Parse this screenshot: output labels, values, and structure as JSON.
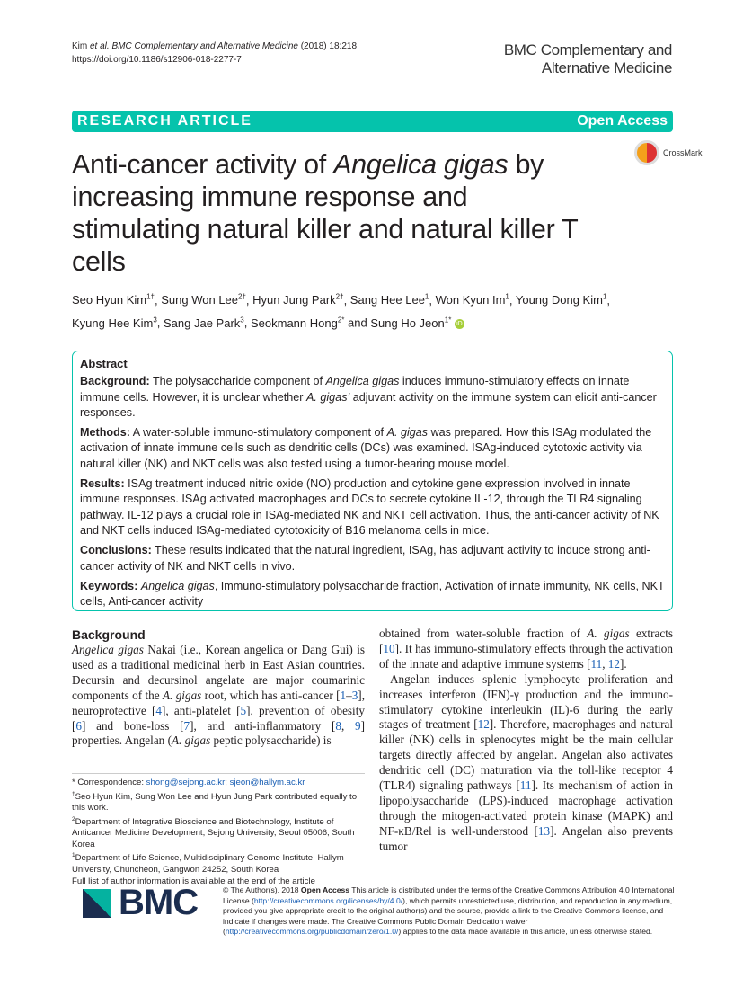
{
  "header": {
    "citation_authors": "Kim ",
    "citation_etal": "et al. BMC Complementary and Alternative Medicine",
    "citation_year": " (2018) 18:218",
    "doi": "https://doi.org/10.1186/s12906-018-2277-7",
    "journal_line1": "BMC Complementary and",
    "journal_line2": "Alternative Medicine"
  },
  "banner": {
    "left": "RESEARCH ARTICLE",
    "right": "Open Access",
    "color": "#05c3ac"
  },
  "crossmark": "CrossMark",
  "title": [
    [
      [
        "Anti-cancer activity of "
      ],
      [
        "Angelica gigas",
        "i"
      ],
      [
        " by"
      ]
    ],
    [
      [
        "increasing immune response and"
      ]
    ],
    [
      [
        "stimulating natural killer and natural killer T"
      ]
    ],
    [
      [
        "cells"
      ]
    ]
  ],
  "authors": [
    [
      "Seo Hyun Kim",
      "1†"
    ],
    [
      "Sung Won Lee",
      "2†"
    ],
    [
      "Hyun Jung Park",
      "2†"
    ],
    [
      "Sang Hee Lee",
      "1"
    ],
    [
      "Won Kyun Im",
      "1"
    ],
    [
      "Young Dong Kim",
      "1"
    ],
    [
      "Kyung Hee Kim",
      "3"
    ],
    [
      "Sang Jae Park",
      "3"
    ],
    [
      "Seokmann Hong",
      "2*"
    ],
    [
      "Sung Ho Jeon",
      "1*"
    ]
  ],
  "authors_and": "and",
  "abstract": {
    "heading": "Abstract",
    "sections": [
      [
        [
          "Background:",
          "b"
        ],
        [
          " The polysaccharide component of "
        ],
        [
          "Angelica gigas",
          "i"
        ],
        [
          " induces immuno-stimulatory effects on innate immune cells. However, it is unclear whether "
        ],
        [
          "A. gigas’",
          "i"
        ],
        [
          " adjuvant activity on the immune system can elicit anti-cancer responses."
        ]
      ],
      [
        [
          "Methods:",
          "b"
        ],
        [
          " A water-soluble immuno-stimulatory component of "
        ],
        [
          "A. gigas",
          "i"
        ],
        [
          " was prepared. How this ISAg modulated the activation of innate immune cells such as dendritic cells (DCs) was examined. ISAg-induced cytotoxic activity via natural killer (NK) and NKT cells was also tested using a tumor-bearing mouse model."
        ]
      ],
      [
        [
          "Results:",
          "b"
        ],
        [
          " ISAg treatment induced nitric oxide (NO) production and cytokine gene expression involved in innate immune responses. ISAg activated macrophages and DCs to secrete cytokine IL-12, through the TLR4 signaling pathway. IL-12 plays a crucial role in ISAg-mediated NK and NKT cell activation. Thus, the anti-cancer activity of NK and NKT cells induced ISAg-mediated cytotoxicity of B16 melanoma cells in mice."
        ]
      ],
      [
        [
          "Conclusions:",
          "b"
        ],
        [
          " These results indicated that the natural ingredient, ISAg, has adjuvant activity to induce strong anti-cancer activity of NK and NKT cells in vivo."
        ]
      ],
      [
        [
          "Keywords:",
          "b"
        ],
        [
          " "
        ],
        [
          "Angelica gigas",
          "i"
        ],
        [
          ", Immuno-stimulatory polysaccharide fraction, Activation of innate immunity, NK cells, NKT cells, Anti-cancer activity"
        ]
      ]
    ]
  },
  "body": {
    "heading": "Background",
    "left": [
      [
        [
          "Angelica gigas",
          "i"
        ],
        [
          " Nakai (i.e., Korean angelica or Dang Gui) is used as a traditional medicinal herb in East Asian countries. Decursin and decursinol angelate are major coumarinic components of the "
        ],
        [
          "A. gigas",
          "i"
        ],
        [
          " root, which has anti-cancer ["
        ],
        [
          "1",
          "c"
        ],
        [
          "–"
        ],
        [
          "3",
          "c"
        ],
        [
          "], neuroprotective ["
        ],
        [
          "4",
          "c"
        ],
        [
          "], anti-platelet ["
        ],
        [
          "5",
          "c"
        ],
        [
          "], prevention of obesity ["
        ],
        [
          "6",
          "c"
        ],
        [
          "] and bone-loss ["
        ],
        [
          "7",
          "c"
        ],
        [
          "], and anti-inflammatory ["
        ],
        [
          "8",
          "c"
        ],
        [
          ", "
        ],
        [
          "9",
          "c"
        ],
        [
          "] properties. Angelan ("
        ],
        [
          "A. gigas",
          "i"
        ],
        [
          " peptic polysaccharide) is"
        ]
      ]
    ],
    "right": [
      [
        [
          "obtained from water-soluble fraction of "
        ],
        [
          "A. gigas",
          "i"
        ],
        [
          " extracts ["
        ],
        [
          "10",
          "c"
        ],
        [
          "]. It has immuno-stimulatory effects through the activation of the innate and adaptive immune systems ["
        ],
        [
          "11",
          "c"
        ],
        [
          ", "
        ],
        [
          "12",
          "c"
        ],
        [
          "]."
        ]
      ],
      [
        [
          "Angelan induces splenic lymphocyte proliferation and increases interferon (IFN)-γ production and the immuno-stimulatory cytokine interleukin (IL)-6 during the early stages of treatment ["
        ],
        [
          "12",
          "c"
        ],
        [
          "]. Therefore, macrophages and natural killer (NK) cells in splenocytes might be the main cellular targets directly affected by angelan. Angelan also activates dendritic cell (DC) maturation via the toll-like receptor 4 (TLR4) signaling pathways ["
        ],
        [
          "11",
          "c"
        ],
        [
          "]. Its mechanism of action in lipopolysaccharide (LPS)-induced macrophage activation through the mitogen-activated protein kinase (MAPK) and NF-κB/Rel is well-understood ["
        ],
        [
          "13",
          "c"
        ],
        [
          "]. Angelan also prevents tumor"
        ]
      ]
    ]
  },
  "footnotes": {
    "correspondence_label": "* Correspondence: ",
    "email1": "shong@sejong.ac.kr",
    "email2": "sjeon@hallym.ac.kr",
    "equal": "Seo Hyun Kim, Sung Won Lee and Hyun Jung Park contributed equally to this work.",
    "aff2": "Department of Integrative Bioscience and Biotechnology, Institute of Anticancer Medicine Development, Sejong University, Seoul 05006, South Korea",
    "aff1": "Department of Life Science, Multidisciplinary Genome Institute, Hallym University, Chuncheon, Gangwon 24252, South Korea",
    "full_list": "Full list of author information is available at the end of the article"
  },
  "logo": "BMC",
  "license": {
    "p1": "© The Author(s). 2018 ",
    "oa": "Open Access",
    "p2": " This article is distributed under the terms of the Creative Commons Attribution 4.0 International License (",
    "url1": "http://creativecommons.org/licenses/by/4.0/",
    "p3": "), which permits unrestricted use, distribution, and reproduction in any medium, provided you give appropriate credit to the original author(s) and the source, provide a link to the Creative Commons license, and indicate if changes were made. The Creative Commons Public Domain Dedication waiver (",
    "url2": "http://creativecommons.org/publicdomain/zero/1.0/",
    "p4": ") applies to the data made available in this article, unless otherwise stated."
  }
}
